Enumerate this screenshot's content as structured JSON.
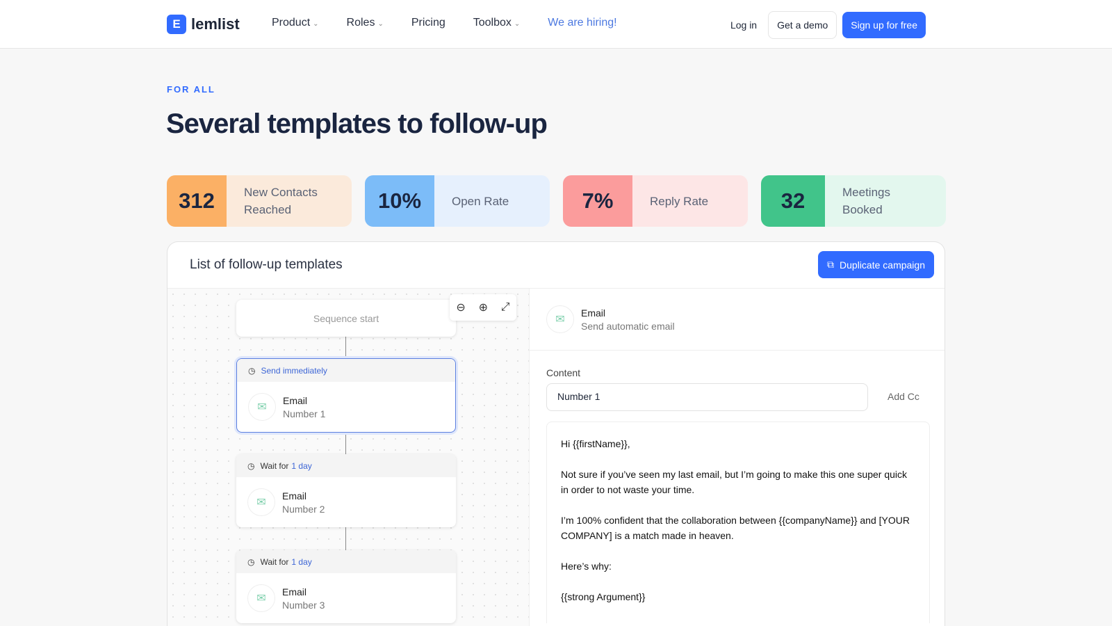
{
  "nav": {
    "logo": "lemlist",
    "logo_mark": "E",
    "items": [
      {
        "label": "Product",
        "dropdown": true
      },
      {
        "label": "Roles",
        "dropdown": true
      },
      {
        "label": "Pricing",
        "dropdown": false
      },
      {
        "label": "Toolbox",
        "dropdown": true
      }
    ],
    "hiring": "We are hiring!",
    "login": "Log in",
    "demo": "Get a demo",
    "signup": "Sign up for free"
  },
  "hero": {
    "eyebrow": "FOR ALL",
    "title": "Several templates to follow-up"
  },
  "stats": [
    {
      "value": "312",
      "label": "New Contacts Reached",
      "color": "#fbb065",
      "bg": "#fbeadb"
    },
    {
      "value": "10%",
      "label": "Open Rate",
      "color": "#7cbcf8",
      "bg": "#e6f0fd"
    },
    {
      "value": "7%",
      "label": "Reply Rate",
      "color": "#fb9c9c",
      "bg": "#fde6e6"
    },
    {
      "value": "32",
      "label": "Meetings Booked",
      "color": "#41c48a",
      "bg": "#e3f7ee"
    }
  ],
  "panel": {
    "title": "List of follow-up templates",
    "duplicate": "Duplicate campaign",
    "sequence_start": "Sequence start",
    "steps": [
      {
        "timing": "Send immediately",
        "wait_value": "",
        "type": "Email",
        "name": "Number 1"
      },
      {
        "timing": "Wait for",
        "wait_value": "1 day",
        "type": "Email",
        "name": "Number 2"
      },
      {
        "timing": "Wait for",
        "wait_value": "1 day",
        "type": "Email",
        "name": "Number 3"
      }
    ],
    "detail": {
      "type": "Email",
      "subtitle": "Send automatic email",
      "content_label": "Content",
      "subject": "Number 1",
      "add_cc": "Add Cc",
      "body": [
        "Hi {{firstName}},",
        "Not sure if you’ve seen my last email, but I’m going to make this one super quick in order to not waste your time.",
        "I’m 100% confident that the collaboration between {{companyName}} and [YOUR COMPANY] is a match made in heaven.",
        "Here’s why:",
        "{{strong Argument}}"
      ]
    }
  }
}
